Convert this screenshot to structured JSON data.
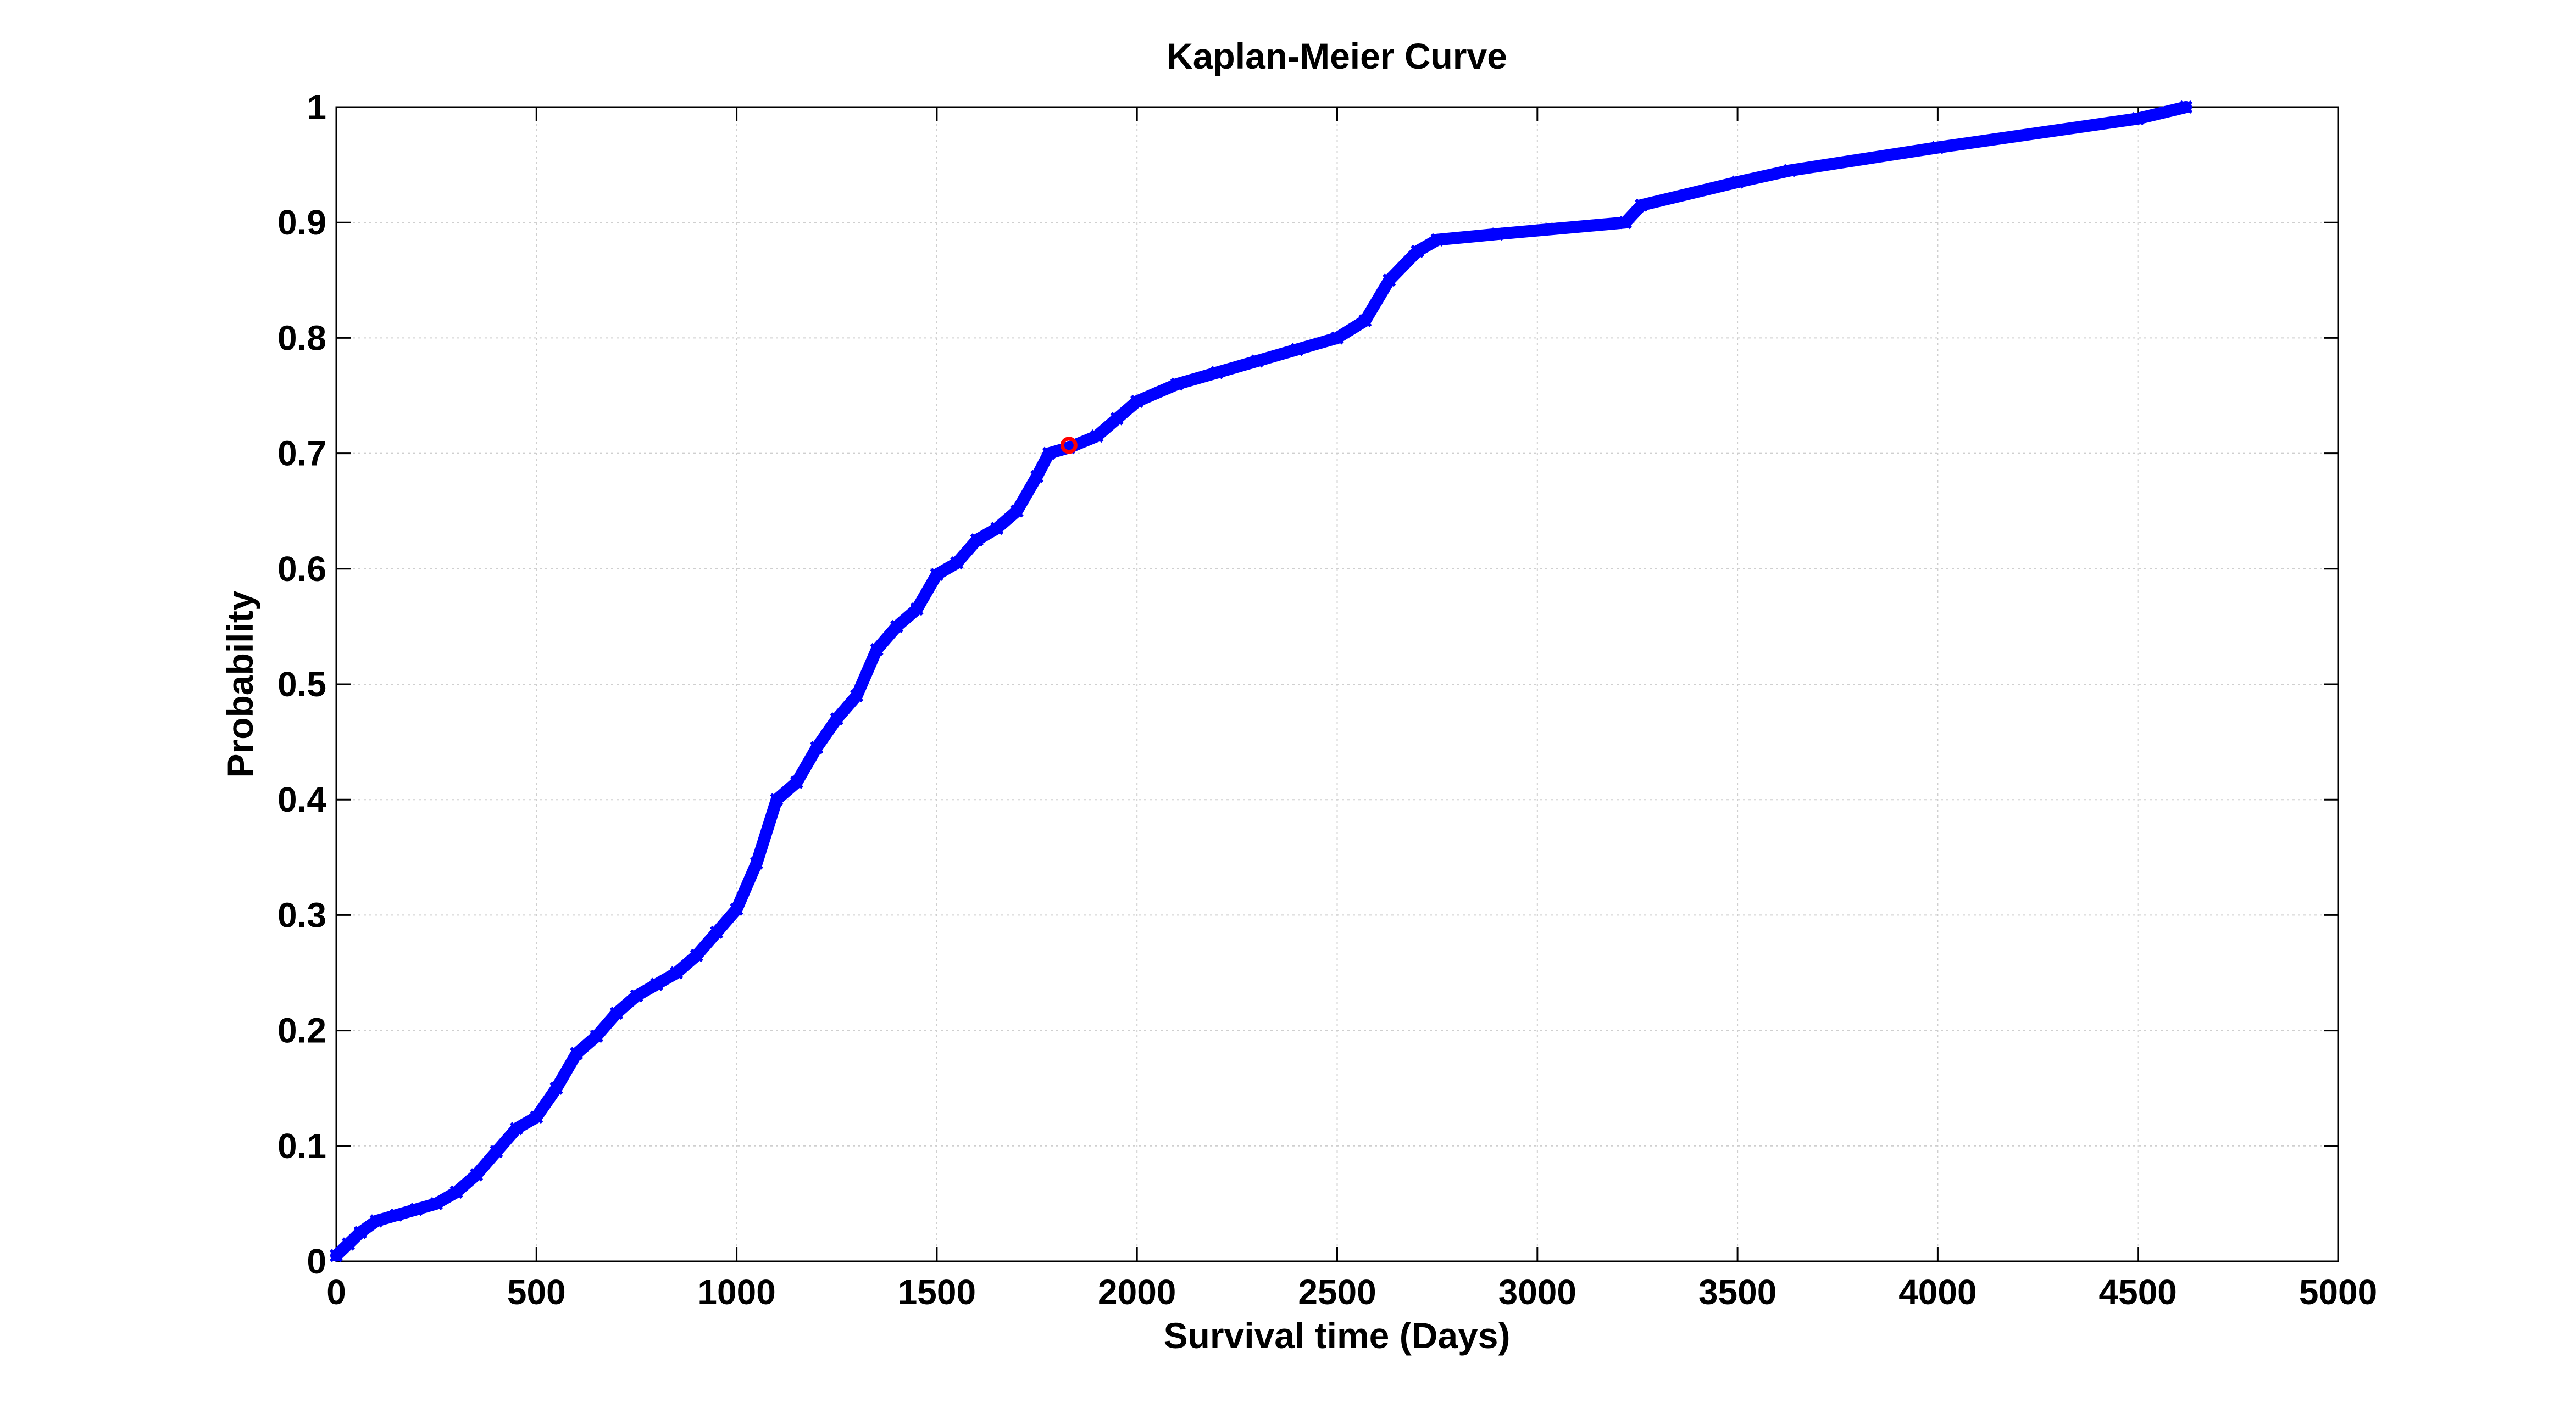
{
  "chart_data": {
    "type": "line",
    "title": "Kaplan-Meier Curve",
    "xlabel": "Survival time (Days)",
    "ylabel": "Probability",
    "xlim": [
      0,
      5000
    ],
    "ylim": [
      0,
      1
    ],
    "xticks": [
      0,
      500,
      1000,
      1500,
      2000,
      2500,
      3000,
      3500,
      4000,
      4500,
      5000
    ],
    "yticks": [
      0,
      0.1,
      0.2,
      0.3,
      0.4,
      0.5,
      0.6,
      0.7,
      0.8,
      0.9,
      1
    ],
    "xtick_labels": [
      "0",
      "500",
      "1000",
      "1500",
      "2000",
      "2500",
      "3000",
      "3500",
      "4000",
      "4500",
      "5000"
    ],
    "ytick_labels": [
      "0",
      "0.1",
      "0.2",
      "0.3",
      "0.4",
      "0.5",
      "0.6",
      "0.7",
      "0.8",
      "0.9",
      "1"
    ],
    "grid": true,
    "series": [
      {
        "color": "#0000ff",
        "marker": "x",
        "x": [
          0,
          30,
          60,
          100,
          150,
          200,
          250,
          300,
          350,
          400,
          450,
          500,
          550,
          600,
          650,
          700,
          750,
          800,
          850,
          900,
          950,
          1000,
          1050,
          1100,
          1150,
          1200,
          1250,
          1300,
          1350,
          1400,
          1450,
          1500,
          1550,
          1600,
          1650,
          1700,
          1750,
          1780,
          1830,
          1900,
          1950,
          2000,
          2100,
          2200,
          2300,
          2400,
          2500,
          2570,
          2630,
          2700,
          2750,
          2900,
          3220,
          3260,
          3500,
          3630,
          4000,
          4500,
          4620
        ],
        "y": [
          0.005,
          0.015,
          0.025,
          0.035,
          0.04,
          0.045,
          0.05,
          0.06,
          0.075,
          0.095,
          0.115,
          0.125,
          0.15,
          0.18,
          0.195,
          0.215,
          0.23,
          0.24,
          0.25,
          0.265,
          0.285,
          0.305,
          0.345,
          0.4,
          0.415,
          0.445,
          0.47,
          0.49,
          0.53,
          0.55,
          0.565,
          0.595,
          0.605,
          0.625,
          0.635,
          0.65,
          0.68,
          0.7,
          0.705,
          0.715,
          0.73,
          0.745,
          0.76,
          0.77,
          0.78,
          0.79,
          0.8,
          0.815,
          0.85,
          0.875,
          0.885,
          0.89,
          0.9,
          0.915,
          0.935,
          0.945,
          0.965,
          0.99,
          1.0
        ]
      }
    ],
    "highlight_point": {
      "x": 1830,
      "y": 0.707,
      "color": "#ff0000"
    }
  }
}
